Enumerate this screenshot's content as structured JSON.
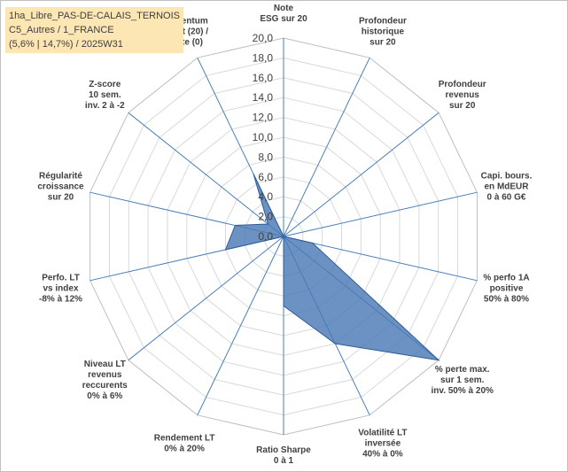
{
  "title_lines": [
    "1ha_Libre_PAS-DE-CALAIS_TERNOIS",
    "C5_Autres / 1_FRANCE",
    "(5,6% | 14,7%) / 2025W31"
  ],
  "chart_data": {
    "type": "radar",
    "rmin": 0,
    "rmax": 20,
    "tick_step": 2,
    "tick_labels": [
      "0,0",
      "2,0",
      "4,0",
      "6,0",
      "8,0",
      "10,0",
      "12,0",
      "14,0",
      "16,0",
      "18,0",
      "20,0"
    ],
    "grid": true,
    "axes": [
      {
        "label": [
          "Note",
          "ESG sur 20"
        ]
      },
      {
        "label": [
          "Profondeur",
          "historique",
          "sur 20"
        ]
      },
      {
        "label": [
          "Profondeur",
          "revenus",
          "sur 20"
        ]
      },
      {
        "label": [
          "Capi. bours.",
          "en MdEUR",
          "0 à 60 G€"
        ]
      },
      {
        "label": [
          "% perfo 1A",
          "positive",
          "50% à 80%"
        ]
      },
      {
        "label": [
          "% perte max.",
          "sur 1 sem.",
          "inv. 50% à 20%"
        ]
      },
      {
        "label": [
          "Volatilité LT",
          "inversée",
          "40% à 0%"
        ]
      },
      {
        "label": [
          "Ratio Sharpe",
          "0 à 1"
        ]
      },
      {
        "label": [
          "Rendement LT",
          "0% à 20%"
        ]
      },
      {
        "label": [
          "Niveau LT",
          "revenus",
          "reccurents",
          "0% à 6%"
        ]
      },
      {
        "label": [
          "Perfo. LT",
          "vs index",
          "-8% à 12%"
        ]
      },
      {
        "label": [
          "Régularité",
          "croissance",
          "sur 20"
        ]
      },
      {
        "label": [
          "Z-score",
          "10 sem.",
          "inv. 2 à -2"
        ]
      },
      {
        "label": [
          "Momentum",
          "Achat (20) /",
          "Vente (0)"
        ]
      }
    ],
    "series": [
      {
        "values": [
          0,
          0,
          0,
          0,
          3,
          20,
          12,
          7,
          0,
          0,
          6,
          5,
          2,
          7
        ]
      }
    ],
    "colors": {
      "fill": "#4a7ab5",
      "stroke": "#2e5c99",
      "grid": "#d9d9d9",
      "spoke": "#4a7ebb"
    }
  }
}
